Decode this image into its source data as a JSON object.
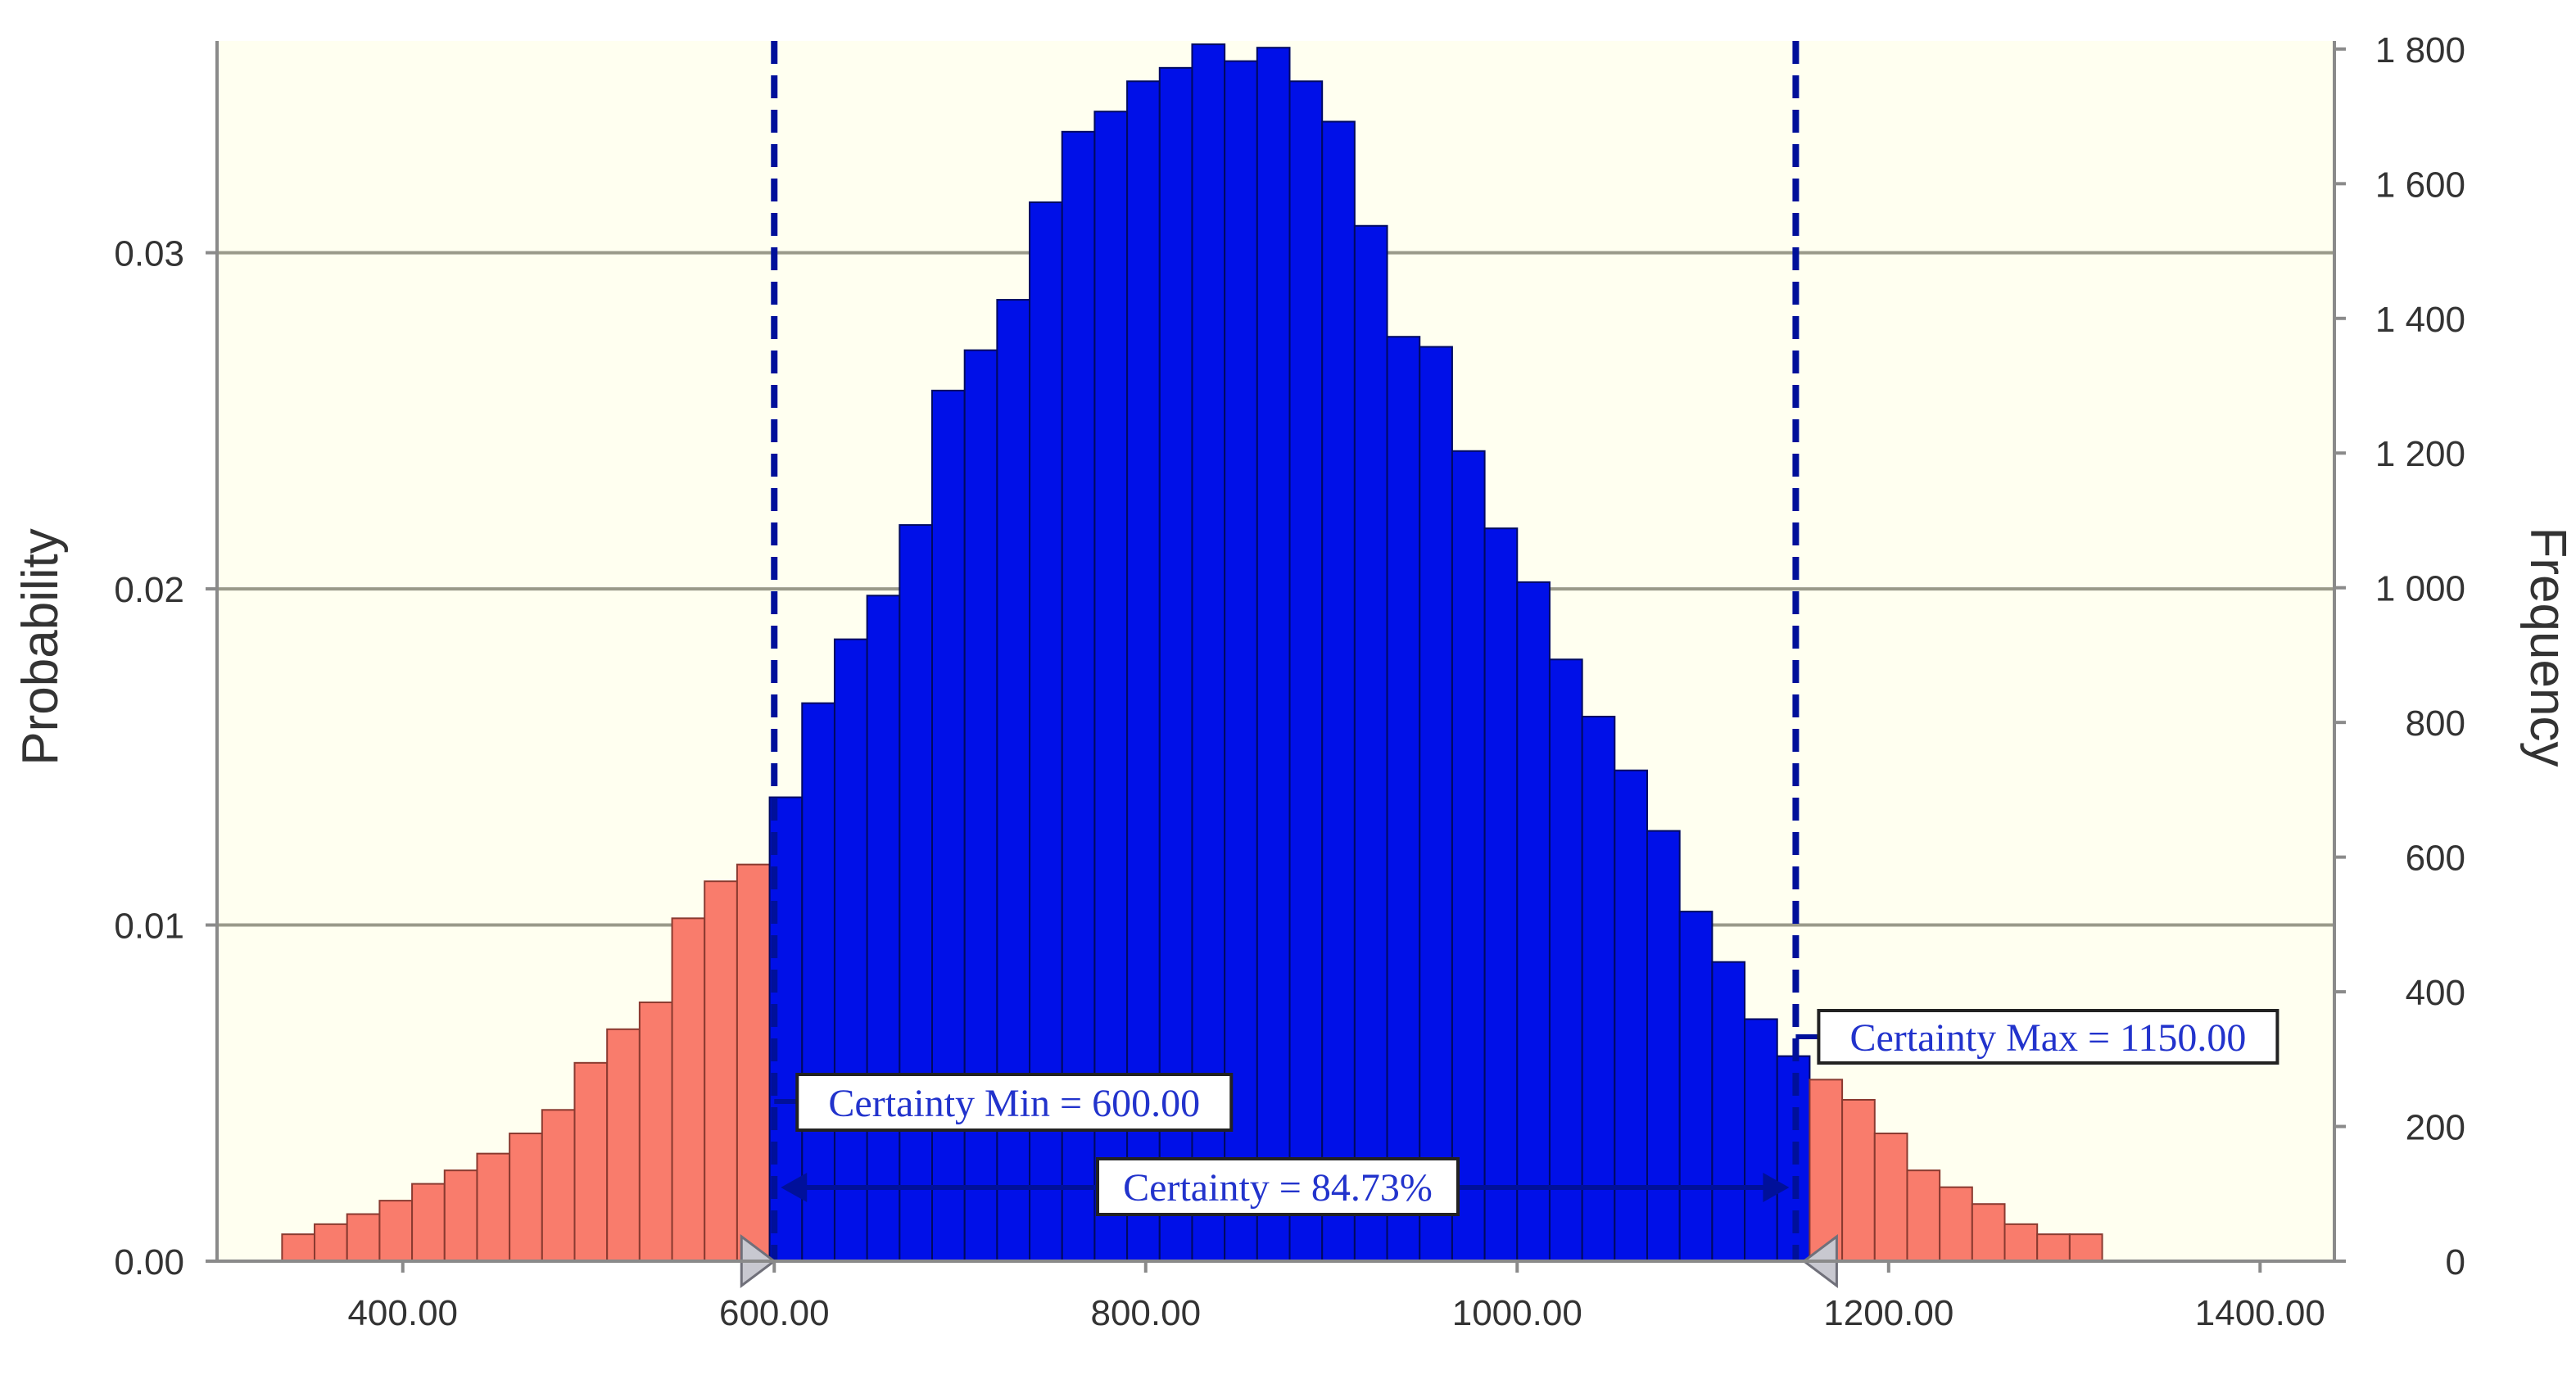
{
  "chart_data": {
    "type": "bar",
    "xlabel": "",
    "ylabel": "Probability",
    "y2label": "Frequency",
    "xlim": [
      300,
      1440
    ],
    "ylim": [
      0,
      0.0363
    ],
    "y2lim": [
      0,
      1812
    ],
    "x_ticks": [
      {
        "value": 400,
        "label": "400.00"
      },
      {
        "value": 600,
        "label": "600.00"
      },
      {
        "value": 800,
        "label": "800.00"
      },
      {
        "value": 1000,
        "label": "1000.00"
      },
      {
        "value": 1200,
        "label": "1200.00"
      },
      {
        "value": 1400,
        "label": "1400.00"
      }
    ],
    "y_ticks": [
      {
        "value": 0,
        "label": "0.00"
      },
      {
        "value": 0.01,
        "label": "0.01"
      },
      {
        "value": 0.02,
        "label": "0.02"
      },
      {
        "value": 0.03,
        "label": "0.03"
      }
    ],
    "y2_ticks": [
      {
        "value": 0,
        "label": "0"
      },
      {
        "value": 200,
        "label": "200"
      },
      {
        "value": 400,
        "label": "400"
      },
      {
        "value": 600,
        "label": "600"
      },
      {
        "value": 800,
        "label": "800"
      },
      {
        "value": 1000,
        "label": "1 000"
      },
      {
        "value": 1200,
        "label": "1 200"
      },
      {
        "value": 1400,
        "label": "1 400"
      },
      {
        "value": 1600,
        "label": "1 600"
      },
      {
        "value": 1800,
        "label": "1 800"
      }
    ],
    "grid": "horizontal",
    "bin_start": 335,
    "bin_width": 17.5,
    "values": [
      0.0008,
      0.0011,
      0.0014,
      0.0018,
      0.0023,
      0.0027,
      0.0032,
      0.0038,
      0.0045,
      0.0059,
      0.0069,
      0.0077,
      0.0102,
      0.0113,
      0.0118,
      0.0138,
      0.0166,
      0.0185,
      0.0198,
      0.0219,
      0.0259,
      0.0271,
      0.0286,
      0.0315,
      0.0336,
      0.0342,
      0.0351,
      0.0355,
      0.0362,
      0.0357,
      0.0361,
      0.0351,
      0.0339,
      0.0308,
      0.0275,
      0.0272,
      0.0241,
      0.0218,
      0.0202,
      0.0179,
      0.0162,
      0.0146,
      0.0128,
      0.0104,
      0.0089,
      0.0072,
      0.0061,
      0.0054,
      0.0048,
      0.0038,
      0.0027,
      0.0022,
      0.0017,
      0.0011,
      0.0008,
      0.0008
    ],
    "certainty_min": 600.0,
    "certainty_max": 1150.0,
    "colors": {
      "inside": "#0010e8",
      "outside": "#f97c6c",
      "plot_bg": "#fffff0",
      "marker_line": "#00109a",
      "label_text": "#2233cc",
      "grid": "#9a9a8a"
    },
    "annotations": {
      "certainty_min_label": "Certainty Min = 600.00",
      "certainty_max_label": "Certainty Max = 1150.00",
      "certainty_label": "Certainty = 84.73%"
    }
  }
}
